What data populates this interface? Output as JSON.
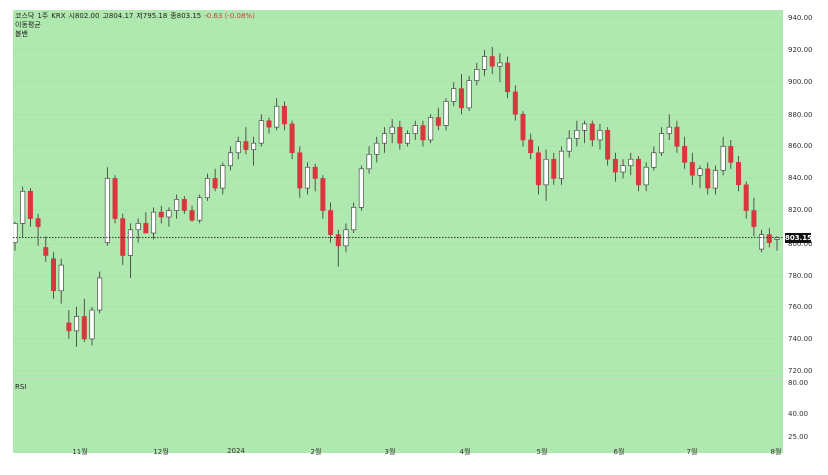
{
  "legend": {
    "symbol": "코스닥",
    "interval": "1주",
    "exchange": "KRX",
    "open": "시802.00",
    "high": "고804.17",
    "low": "저795.18",
    "close": "종803.15",
    "change": "-0.63 (-0.08%)",
    "line2": "이동평균",
    "line3": "볼밴"
  },
  "rsi": {
    "label": "RSI"
  },
  "price_axis": {
    "ticks": [
      "940.00",
      "920.00",
      "900.00",
      "880.00",
      "860.00",
      "840.00",
      "820.00",
      "800.00",
      "780.00",
      "760.00",
      "740.00",
      "720.00"
    ],
    "last_price": "803.15"
  },
  "rsi_axis": {
    "ticks": [
      "80.00",
      "40.00",
      "25.00"
    ]
  },
  "time_axis": {
    "ticks": [
      "11월",
      "12월",
      "2024",
      "2월",
      "3월",
      "4월",
      "5월",
      "6월",
      "7월",
      "8월"
    ]
  },
  "colors": {
    "background": "#afe9af",
    "up": "#ffffff",
    "down": "#d9363e",
    "neutral": "#333333"
  },
  "chart_data": {
    "type": "candlestick",
    "y_range": [
      720,
      940
    ],
    "series": [
      {
        "o": 800,
        "h": 813,
        "l": 795,
        "c": 812
      },
      {
        "o": 812,
        "h": 835,
        "l": 803,
        "c": 832
      },
      {
        "o": 832,
        "h": 834,
        "l": 810,
        "c": 815
      },
      {
        "o": 815,
        "h": 818,
        "l": 798,
        "c": 810
      },
      {
        "o": 797,
        "h": 804,
        "l": 788,
        "c": 792
      },
      {
        "o": 790,
        "h": 794,
        "l": 765,
        "c": 770
      },
      {
        "o": 770,
        "h": 790,
        "l": 762,
        "c": 786
      },
      {
        "o": 750,
        "h": 758,
        "l": 740,
        "c": 745
      },
      {
        "o": 745,
        "h": 760,
        "l": 735,
        "c": 754
      },
      {
        "o": 754,
        "h": 765,
        "l": 738,
        "c": 740
      },
      {
        "o": 740,
        "h": 760,
        "l": 736,
        "c": 758
      },
      {
        "o": 758,
        "h": 782,
        "l": 756,
        "c": 778
      },
      {
        "o": 800,
        "h": 847,
        "l": 798,
        "c": 840
      },
      {
        "o": 840,
        "h": 842,
        "l": 812,
        "c": 815
      },
      {
        "o": 815,
        "h": 818,
        "l": 786,
        "c": 792
      },
      {
        "o": 792,
        "h": 812,
        "l": 778,
        "c": 808
      },
      {
        "o": 808,
        "h": 815,
        "l": 800,
        "c": 812
      },
      {
        "o": 812,
        "h": 819,
        "l": 806,
        "c": 806
      },
      {
        "o": 806,
        "h": 822,
        "l": 802,
        "c": 819
      },
      {
        "o": 819,
        "h": 823,
        "l": 812,
        "c": 816
      },
      {
        "o": 816,
        "h": 822,
        "l": 810,
        "c": 820
      },
      {
        "o": 820,
        "h": 830,
        "l": 815,
        "c": 827
      },
      {
        "o": 827,
        "h": 829,
        "l": 818,
        "c": 820
      },
      {
        "o": 820,
        "h": 823,
        "l": 813,
        "c": 814
      },
      {
        "o": 814,
        "h": 830,
        "l": 812,
        "c": 828
      },
      {
        "o": 828,
        "h": 843,
        "l": 826,
        "c": 840
      },
      {
        "o": 840,
        "h": 846,
        "l": 832,
        "c": 834
      },
      {
        "o": 834,
        "h": 850,
        "l": 830,
        "c": 848
      },
      {
        "o": 848,
        "h": 860,
        "l": 845,
        "c": 856
      },
      {
        "o": 856,
        "h": 866,
        "l": 852,
        "c": 863
      },
      {
        "o": 863,
        "h": 872,
        "l": 855,
        "c": 858
      },
      {
        "o": 858,
        "h": 866,
        "l": 848,
        "c": 862
      },
      {
        "o": 862,
        "h": 880,
        "l": 860,
        "c": 876
      },
      {
        "o": 876,
        "h": 878,
        "l": 868,
        "c": 872
      },
      {
        "o": 872,
        "h": 890,
        "l": 870,
        "c": 885
      },
      {
        "o": 885,
        "h": 888,
        "l": 870,
        "c": 874
      },
      {
        "o": 874,
        "h": 876,
        "l": 852,
        "c": 856
      },
      {
        "o": 856,
        "h": 860,
        "l": 828,
        "c": 834
      },
      {
        "o": 834,
        "h": 850,
        "l": 830,
        "c": 847
      },
      {
        "o": 847,
        "h": 849,
        "l": 832,
        "c": 840
      },
      {
        "o": 840,
        "h": 842,
        "l": 815,
        "c": 820
      },
      {
        "o": 820,
        "h": 825,
        "l": 800,
        "c": 805
      },
      {
        "o": 805,
        "h": 808,
        "l": 785,
        "c": 798
      },
      {
        "o": 798,
        "h": 812,
        "l": 794,
        "c": 808
      },
      {
        "o": 808,
        "h": 825,
        "l": 806,
        "c": 822
      },
      {
        "o": 822,
        "h": 848,
        "l": 820,
        "c": 846
      },
      {
        "o": 846,
        "h": 860,
        "l": 843,
        "c": 855
      },
      {
        "o": 855,
        "h": 866,
        "l": 850,
        "c": 862
      },
      {
        "o": 862,
        "h": 872,
        "l": 856,
        "c": 868
      },
      {
        "o": 868,
        "h": 877,
        "l": 862,
        "c": 872
      },
      {
        "o": 872,
        "h": 876,
        "l": 858,
        "c": 862
      },
      {
        "o": 862,
        "h": 870,
        "l": 860,
        "c": 868
      },
      {
        "o": 868,
        "h": 876,
        "l": 864,
        "c": 873
      },
      {
        "o": 873,
        "h": 876,
        "l": 860,
        "c": 864
      },
      {
        "o": 864,
        "h": 880,
        "l": 862,
        "c": 878
      },
      {
        "o": 878,
        "h": 884,
        "l": 870,
        "c": 873
      },
      {
        "o": 873,
        "h": 890,
        "l": 870,
        "c": 888
      },
      {
        "o": 888,
        "h": 900,
        "l": 885,
        "c": 896
      },
      {
        "o": 896,
        "h": 905,
        "l": 880,
        "c": 884
      },
      {
        "o": 884,
        "h": 904,
        "l": 882,
        "c": 901
      },
      {
        "o": 901,
        "h": 912,
        "l": 898,
        "c": 908
      },
      {
        "o": 908,
        "h": 920,
        "l": 904,
        "c": 916
      },
      {
        "o": 916,
        "h": 922,
        "l": 905,
        "c": 910
      },
      {
        "o": 910,
        "h": 918,
        "l": 900,
        "c": 912
      },
      {
        "o": 912,
        "h": 916,
        "l": 890,
        "c": 894
      },
      {
        "o": 894,
        "h": 898,
        "l": 876,
        "c": 880
      },
      {
        "o": 880,
        "h": 882,
        "l": 860,
        "c": 864
      },
      {
        "o": 864,
        "h": 868,
        "l": 852,
        "c": 856
      },
      {
        "o": 856,
        "h": 860,
        "l": 830,
        "c": 836
      },
      {
        "o": 836,
        "h": 858,
        "l": 826,
        "c": 852
      },
      {
        "o": 852,
        "h": 856,
        "l": 836,
        "c": 840
      },
      {
        "o": 840,
        "h": 860,
        "l": 836,
        "c": 857
      },
      {
        "o": 857,
        "h": 870,
        "l": 853,
        "c": 865
      },
      {
        "o": 865,
        "h": 876,
        "l": 860,
        "c": 870
      },
      {
        "o": 870,
        "h": 876,
        "l": 862,
        "c": 874
      },
      {
        "o": 874,
        "h": 876,
        "l": 860,
        "c": 864
      },
      {
        "o": 864,
        "h": 874,
        "l": 858,
        "c": 870
      },
      {
        "o": 870,
        "h": 872,
        "l": 848,
        "c": 852
      },
      {
        "o": 852,
        "h": 856,
        "l": 838,
        "c": 844
      },
      {
        "o": 844,
        "h": 852,
        "l": 840,
        "c": 848
      },
      {
        "o": 848,
        "h": 856,
        "l": 842,
        "c": 852
      },
      {
        "o": 852,
        "h": 854,
        "l": 832,
        "c": 836
      },
      {
        "o": 836,
        "h": 850,
        "l": 832,
        "c": 847
      },
      {
        "o": 847,
        "h": 860,
        "l": 845,
        "c": 856
      },
      {
        "o": 856,
        "h": 872,
        "l": 854,
        "c": 868
      },
      {
        "o": 868,
        "h": 880,
        "l": 864,
        "c": 872
      },
      {
        "o": 872,
        "h": 876,
        "l": 856,
        "c": 860
      },
      {
        "o": 860,
        "h": 866,
        "l": 846,
        "c": 850
      },
      {
        "o": 850,
        "h": 856,
        "l": 836,
        "c": 842
      },
      {
        "o": 842,
        "h": 848,
        "l": 834,
        "c": 846
      },
      {
        "o": 846,
        "h": 850,
        "l": 830,
        "c": 834
      },
      {
        "o": 834,
        "h": 848,
        "l": 830,
        "c": 845
      },
      {
        "o": 845,
        "h": 866,
        "l": 842,
        "c": 860
      },
      {
        "o": 860,
        "h": 864,
        "l": 846,
        "c": 850
      },
      {
        "o": 850,
        "h": 854,
        "l": 832,
        "c": 836
      },
      {
        "o": 836,
        "h": 838,
        "l": 815,
        "c": 820
      },
      {
        "o": 820,
        "h": 828,
        "l": 804,
        "c": 810
      },
      {
        "o": 796,
        "h": 808,
        "l": 794,
        "c": 805
      },
      {
        "o": 805,
        "h": 809,
        "l": 797,
        "c": 800
      },
      {
        "o": 802,
        "h": 804,
        "l": 795,
        "c": 803
      }
    ]
  }
}
